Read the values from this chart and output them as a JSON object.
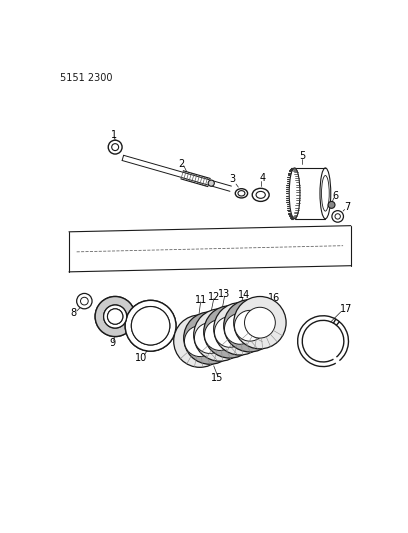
{
  "bg_color": "#ffffff",
  "line_color": "#1a1a1a",
  "label_color": "#000000",
  "part_number_text": "5151 2300",
  "fig_width": 4.08,
  "fig_height": 5.33,
  "dpi": 100
}
